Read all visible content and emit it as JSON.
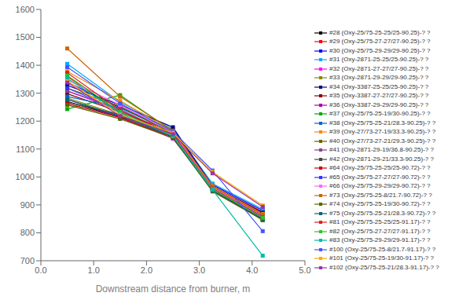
{
  "chart_data": {
    "type": "line",
    "xlabel": "Downstream distance from burner, m",
    "x": [
      0.5,
      1.5,
      2.5,
      3.25,
      4.2
    ],
    "xlim": [
      0.0,
      5.0
    ],
    "xticks": [
      {
        "value": 0.0,
        "label": "0.0"
      },
      {
        "value": 1.0,
        "label": "1.0"
      },
      {
        "value": 2.0,
        "label": "2.0"
      },
      {
        "value": 3.0,
        "label": "3.0"
      },
      {
        "value": 4.0,
        "label": "4.0"
      },
      {
        "value": 5.0,
        "label": "5.0"
      }
    ],
    "ylim": [
      700,
      1600
    ],
    "yticks": [
      700,
      800,
      900,
      1000,
      1100,
      1200,
      1300,
      1400,
      1500,
      1600
    ],
    "marker": "square",
    "grid": false,
    "legend": "right",
    "series": [
      {
        "name": "#28 (Oxy-25/75-25-25/25-90.25)-? ?",
        "color": "#000000",
        "values": [
          1270,
          1215,
          1160,
          958,
          870
        ]
      },
      {
        "name": "#29 (Oxy-25/75-27-27/27-90.25)-? ?",
        "color": "#ff0000",
        "values": [
          1360,
          1230,
          1165,
          967,
          875
        ]
      },
      {
        "name": "#30 (Oxy-25/75-29-29/29-90.25)-? ?",
        "color": "#0000ff",
        "values": [
          1340,
          1248,
          1168,
          972,
          880
        ]
      },
      {
        "name": "#31 (Oxy-2871-25-25/25-90.25)-? ?",
        "color": "#00aaff",
        "values": [
          1405,
          1268,
          1172,
          976,
          885
        ]
      },
      {
        "name": "#32 (Oxy-2871-27-27/27-90.25)-? ?",
        "color": "#ff00ff",
        "values": [
          1308,
          1238,
          1148,
          963,
          863
        ]
      },
      {
        "name": "#33 (Oxy-2871-29-29/29-90.25)-? ?",
        "color": "#888800",
        "values": [
          1283,
          1222,
          1143,
          958,
          860
        ]
      },
      {
        "name": "#34 (Oxy-3387-25-25/25-90.25)-? ?",
        "color": "#000088",
        "values": [
          1328,
          1258,
          1178,
          968,
          872
        ]
      },
      {
        "name": "#35 (Oxy-3387-27-27/27-90.25)-? ?",
        "color": "#880000",
        "values": [
          1298,
          1233,
          1153,
          962,
          866
        ]
      },
      {
        "name": "#36 (Oxy-3387-29-29/29-90.25)-? ?",
        "color": "#aa00aa",
        "values": [
          1278,
          1213,
          1138,
          956,
          857
        ]
      },
      {
        "name": "#37 (Oxy-25/75-25-19/30-90.25)-? ?",
        "color": "#00aa00",
        "values": [
          1243,
          1293,
          1163,
          958,
          845
        ]
      },
      {
        "name": "#38 (Oxy-25/75-25-21/28.3-90.25)-? ?",
        "color": "#0066cc",
        "values": [
          1288,
          1248,
          1158,
          963,
          853
        ]
      },
      {
        "name": "#39 (Oxy-27/73-27-19/33.3-90.25)-? ?",
        "color": "#ff8800",
        "values": [
          1378,
          1273,
          1163,
          968,
          868
        ]
      },
      {
        "name": "#40 (Oxy-27/73-27-21/29.3-90.25)-? ?",
        "color": "#666600",
        "values": [
          1318,
          1253,
          1156,
          963,
          860
        ]
      },
      {
        "name": "#41 (Oxy-2871-29-19/36.8-90.25)-? ?",
        "color": "#884488",
        "values": [
          1308,
          1243,
          1150,
          961,
          858
        ]
      },
      {
        "name": "#42 (Oxy-2871-29-21/33.3-90.25)-? ?",
        "color": "#444444",
        "values": [
          1268,
          1223,
          1146,
          956,
          854
        ]
      },
      {
        "name": "#64 (Oxy-25/75-25-25/25-90.72)-? ?",
        "color": "#cc0000",
        "values": [
          1263,
          1213,
          1143,
          951,
          848
        ]
      },
      {
        "name": "#65 (Oxy-25/75-27-27/27-90.72)-? ?",
        "color": "#3333ff",
        "values": [
          1318,
          1238,
          1153,
          958,
          858
        ]
      },
      {
        "name": "#66 (Oxy-25/75-29-29/29-90.72)-? ?",
        "color": "#ff66ff",
        "values": [
          1348,
          1258,
          1160,
          962,
          861
        ]
      },
      {
        "name": "#73 (Oxy-25/75-25-8/21.7-90.72)-? ?",
        "color": "#cc6600",
        "values": [
          1460,
          1288,
          1166,
          966,
          864
        ]
      },
      {
        "name": "#74 (Oxy-25/75-25-19/30-90.72)-? ?",
        "color": "#556600",
        "values": [
          1258,
          1208,
          1140,
          948,
          846
        ]
      },
      {
        "name": "#75 (Oxy-25/75-25-21/28.3-90.72)-? ?",
        "color": "#006677",
        "values": [
          1278,
          1218,
          1145,
          952,
          850
        ]
      },
      {
        "name": "#81 (Oxy-25/75-25-25/25-91.17)-? ?",
        "color": "#dd2222",
        "values": [
          1373,
          1238,
          1153,
          958,
          856
        ]
      },
      {
        "name": "#82 (Oxy-25/75-27-27/27-91.17)-? ?",
        "color": "#22cc22",
        "values": [
          1363,
          1233,
          1148,
          956,
          854
        ]
      },
      {
        "name": "#83 (Oxy-25/75-29-29/29-91.17)-? ?",
        "color": "#00bbaa",
        "values": [
          1353,
          1228,
          1146,
          954,
          718
        ]
      },
      {
        "name": "#100 (Oxy-25/75-25-8/21.7-91.17)-? ?",
        "color": "#4455ff",
        "values": [
          1393,
          1263,
          1163,
          1023,
          806
        ]
      },
      {
        "name": "#101 (Oxy-25/75-25-19/30-91.17)-? ?",
        "color": "#ffaa00",
        "values": [
          1343,
          1223,
          1158,
          1018,
          898
        ]
      },
      {
        "name": "#102 (Oxy-25/75-25-21/28.3-91.17)-? ?",
        "color": "#9933aa",
        "values": [
          1338,
          1218,
          1153,
          1013,
          893
        ]
      }
    ]
  }
}
